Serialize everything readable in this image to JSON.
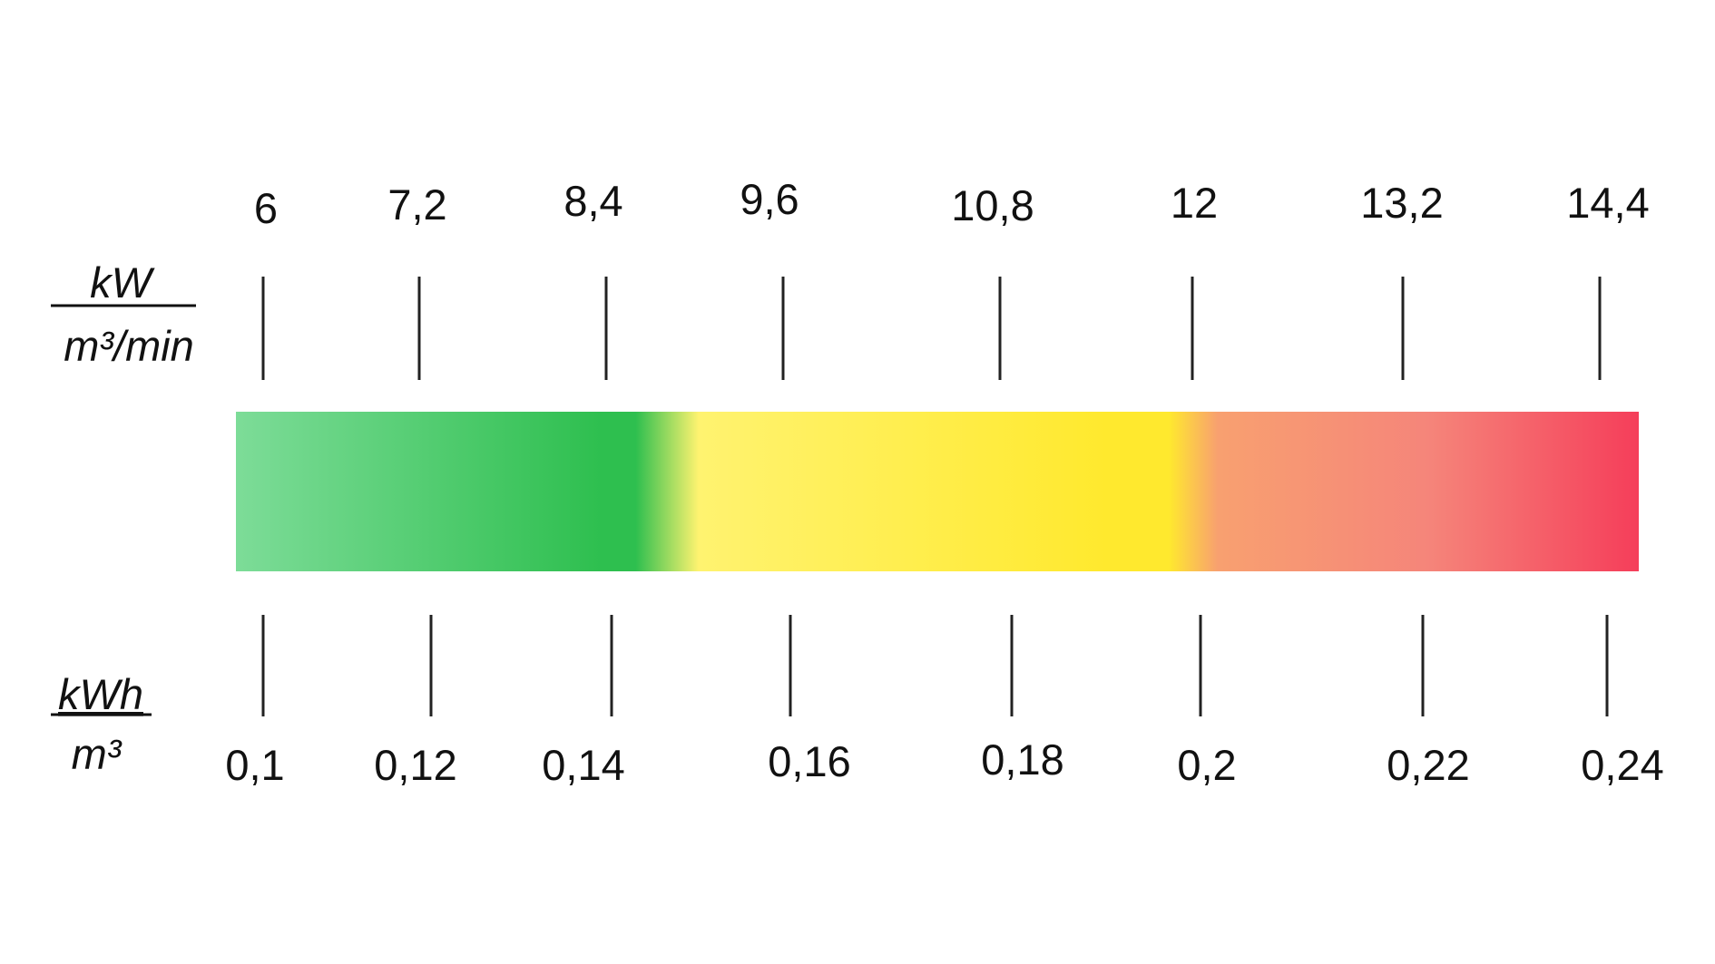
{
  "scale": {
    "top_unit": {
      "numerator": "kW",
      "denominator": "m³/min"
    },
    "bottom_unit": {
      "numerator": "kWh",
      "denominator": "m³"
    },
    "top_ticks": [
      "6",
      "7,2",
      "8,4",
      "9,6",
      "10,8",
      "12",
      "13,2",
      "14,4"
    ],
    "bottom_ticks": [
      "0,1",
      "0,12",
      "0,14",
      "0,16",
      "0,18",
      "0,2",
      "0,22",
      "0,24"
    ],
    "colors": {
      "green_light": "#7ddc98",
      "green": "#2ebf4f",
      "yellow_light": "#fff370",
      "yellow": "#ffe92e",
      "orange": "#f8a070",
      "pink": "#f5857a",
      "red": "#f53e5a"
    }
  }
}
